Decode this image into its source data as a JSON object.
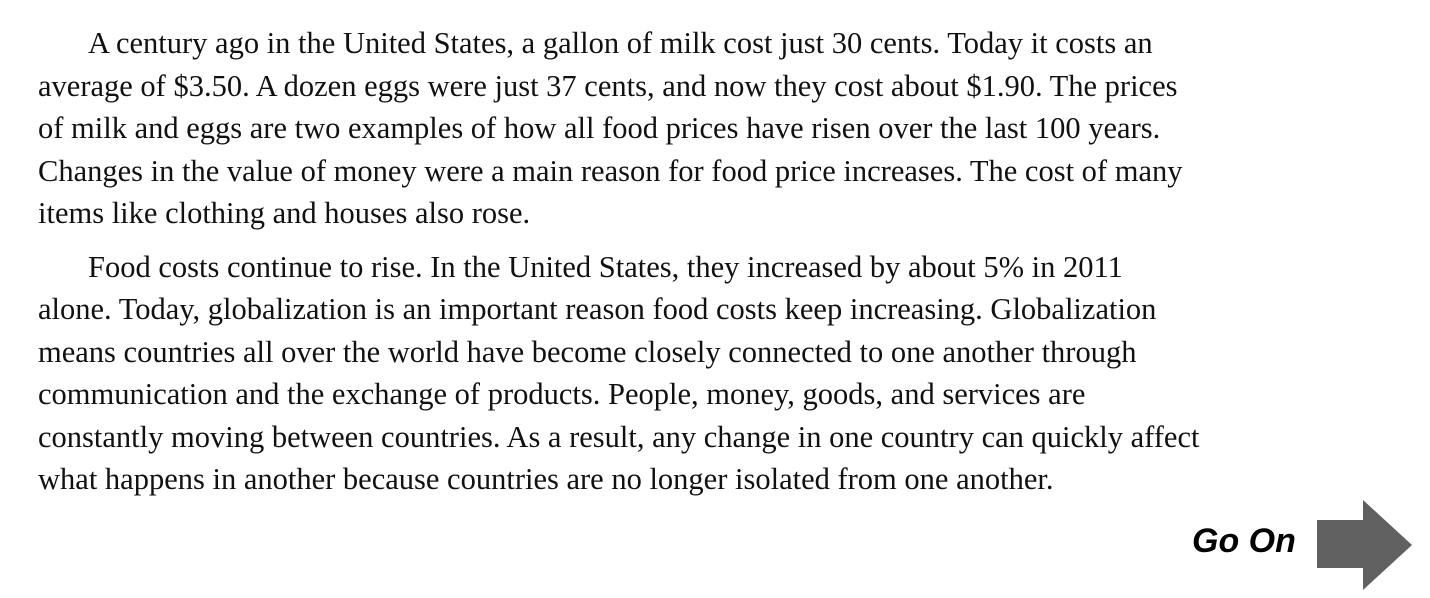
{
  "paragraphs": [
    {
      "lines": [
        "A century ago in the United States, a gallon of milk cost just 30 cents. Today it costs an",
        "average of $3.50. A dozen eggs were just 37 cents, and now they cost about $1.90. The prices",
        "of milk and eggs are two examples of how all food prices have risen over the last 100 years.",
        "Changes in the value of money were a main reason for food price increases. The cost of many",
        "items like clothing and houses also rose."
      ]
    },
    {
      "lines": [
        "Food costs continue to rise. In the United States, they increased by about 5% in 2011",
        "alone. Today, globalization is an important reason food costs keep increasing. Globalization",
        "means countries all over the world have become closely connected to one another through",
        "communication and the exchange of products. People, money, goods, and services are",
        "constantly moving between countries. As a result, any change in one country can quickly affect",
        "what happens in another because countries are no longer isolated from one another."
      ]
    }
  ],
  "nav": {
    "go_on_label": "Go On",
    "icon": "arrow-right-icon",
    "arrow_color": "#606060"
  }
}
